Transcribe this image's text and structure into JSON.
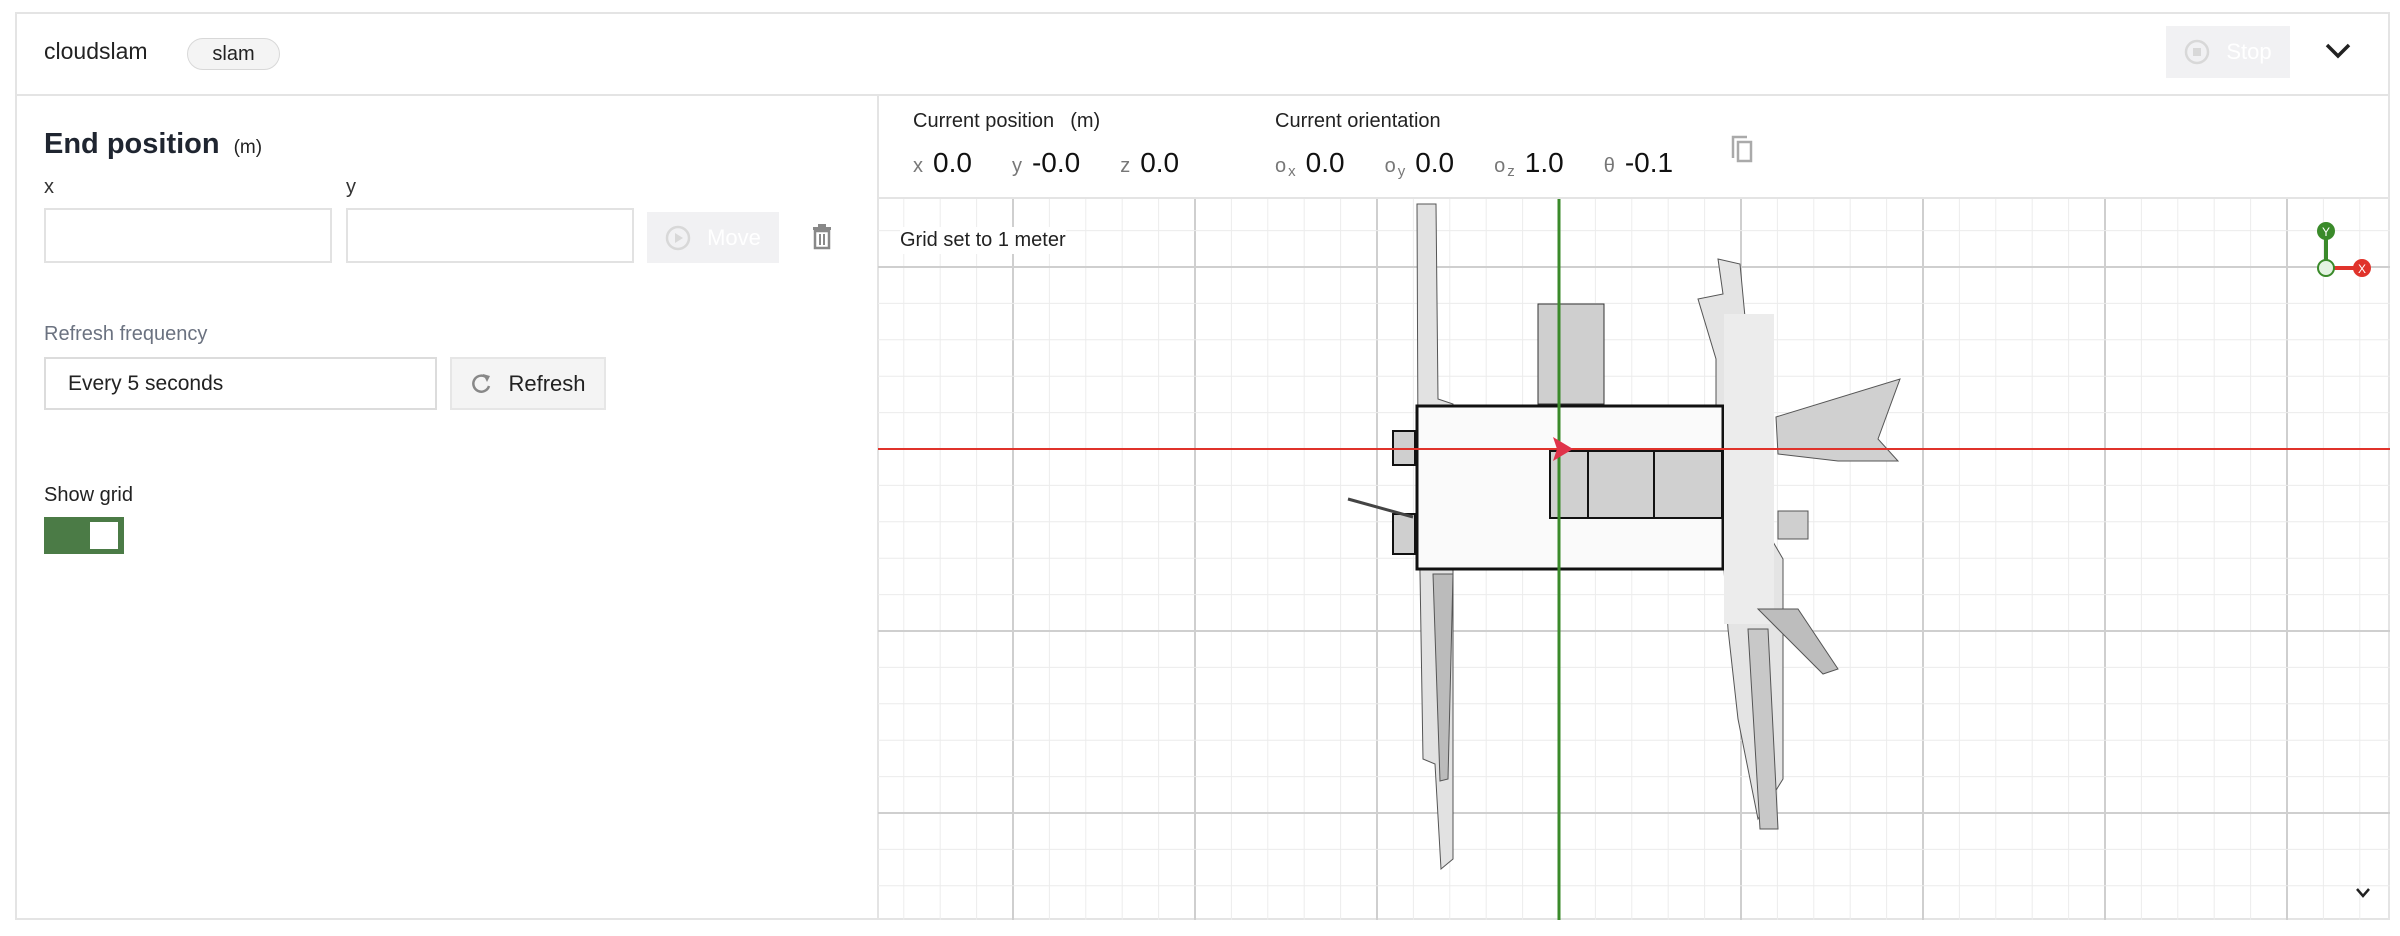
{
  "header": {
    "title": "cloudslam",
    "badge": "slam",
    "stop_label": "Stop"
  },
  "end_position": {
    "title": "End position",
    "unit": "(m)",
    "x_label": "x",
    "y_label": "y",
    "x_value": "",
    "y_value": "",
    "move_label": "Move"
  },
  "refresh": {
    "label": "Refresh frequency",
    "selected": "Every 5 seconds",
    "button_label": "Refresh"
  },
  "grid": {
    "label": "Show grid",
    "enabled": true
  },
  "current_position": {
    "title": "Current position",
    "unit": "(m)",
    "x_label": "x",
    "x": "0.0",
    "y_label": "y",
    "y": "-0.0",
    "z_label": "z",
    "z": "0.0"
  },
  "current_orientation": {
    "title": "Current orientation",
    "ox_label": "o",
    "ox_sub": "x",
    "ox": "0.0",
    "oy_label": "o",
    "oy_sub": "y",
    "oy": "0.0",
    "oz_label": "o",
    "oz_sub": "z",
    "oz": "1.0",
    "theta_label": "θ",
    "theta": "-0.1"
  },
  "map": {
    "grid_note": "Grid set to 1 meter",
    "axis_x_label": "X",
    "axis_y_label": "Y",
    "colors": {
      "x_axis": "#e0332b",
      "y_axis": "#3a8a2a",
      "robot": "#e0334b",
      "toggle_on": "#4b7b46"
    }
  }
}
